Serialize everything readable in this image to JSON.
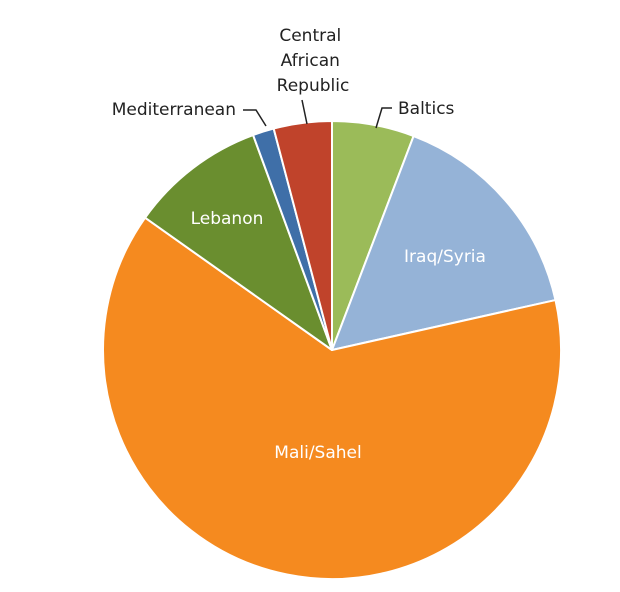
{
  "chart_data": {
    "type": "pie",
    "slices": [
      {
        "label": "Baltics",
        "value": 5.8,
        "color": "#9BBB59"
      },
      {
        "label": "Iraq/Syria",
        "value": 15.7,
        "color": "#95B3D7"
      },
      {
        "label": "Mali/Sahel",
        "value": 63.3,
        "color": "#F58A1F"
      },
      {
        "label": "Lebanon",
        "value": 9.6,
        "color": "#6A8E2F"
      },
      {
        "label": "Mediterranean",
        "value": 1.5,
        "color": "#3F6FA8"
      },
      {
        "label": "Central African Republic",
        "value": 4.1,
        "color": "#C0432B"
      }
    ],
    "start_angle": "12 o'clock",
    "direction": "clockwise",
    "legend": "none",
    "title": ""
  }
}
